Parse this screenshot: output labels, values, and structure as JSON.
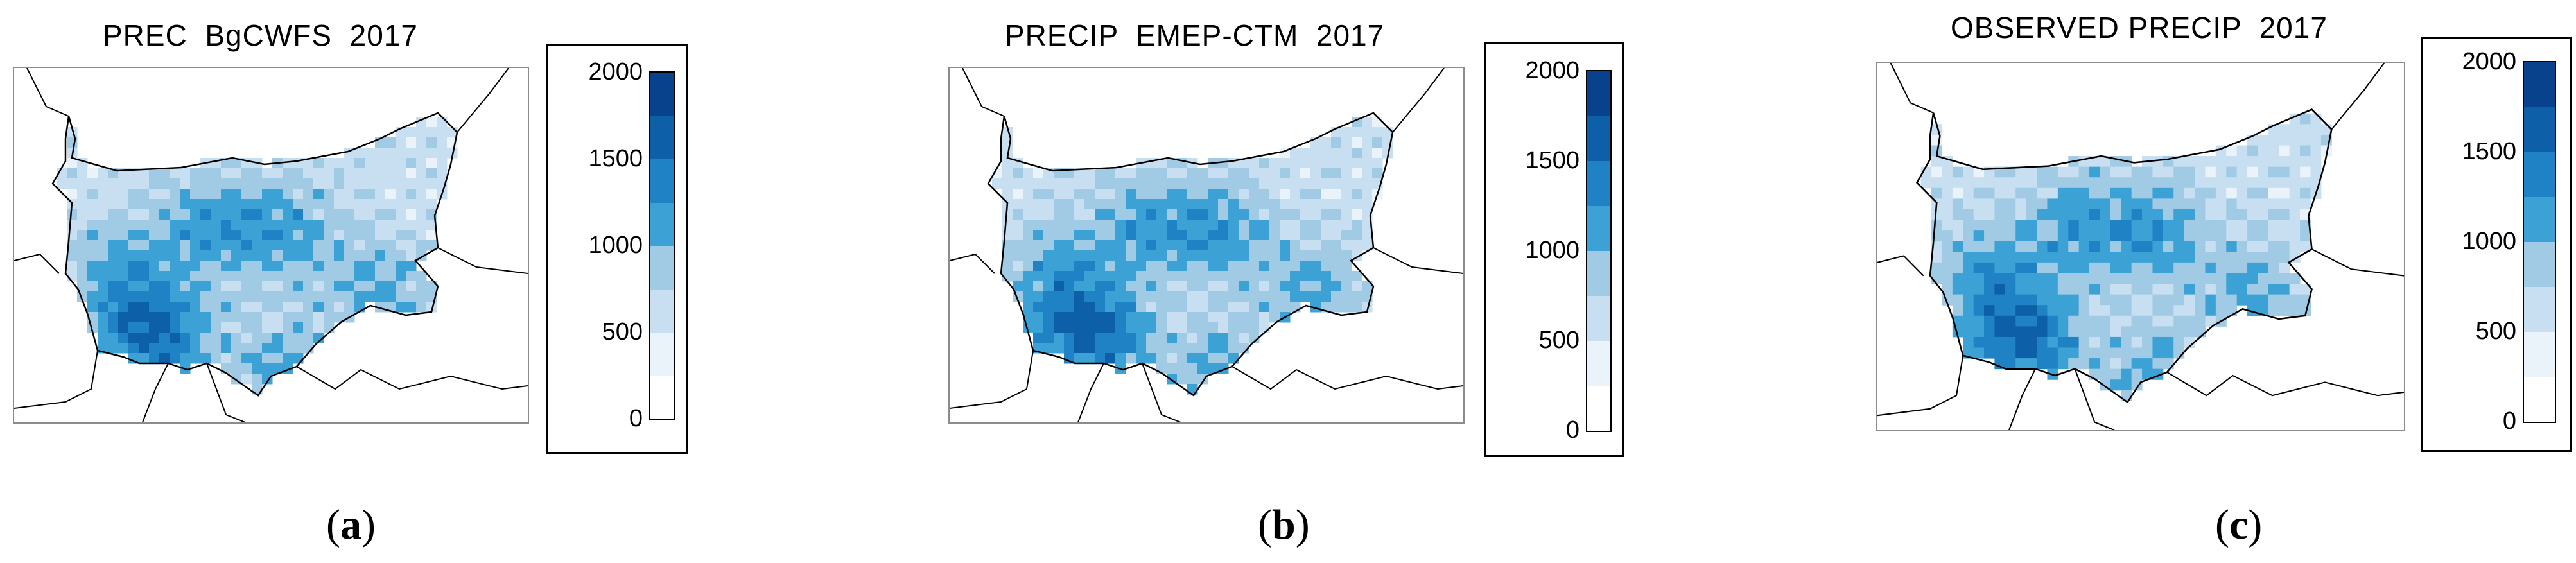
{
  "colors": {
    "scale": [
      "#ffffff",
      "#eaf2fa",
      "#c7dff0",
      "#a1cbe5",
      "#3ca2d6",
      "#1f82c4",
      "#0d5fa8",
      "#08418c"
    ],
    "border": "#000000",
    "frame": "#8c8c8c"
  },
  "panels": [
    {
      "id": "a",
      "title": "PREC  BgCWFS  2017",
      "caption_open": "(",
      "caption_letter": "a",
      "caption_close": ")",
      "legend": {
        "ticks": [
          "2000",
          "1500",
          "1000",
          "500",
          "0"
        ]
      }
    },
    {
      "id": "b",
      "title": "PRECIP  EMEP-CTM  2017",
      "caption_open": "(",
      "caption_letter": "b",
      "caption_close": ")",
      "legend": {
        "ticks": [
          "2000",
          "1500",
          "1000",
          "500",
          "0"
        ]
      }
    },
    {
      "id": "c",
      "title": "OBSERVED PRECIP  2017",
      "caption_open": "(",
      "caption_letter": "c",
      "caption_close": ")",
      "legend": {
        "ticks": [
          "2000",
          "1500",
          "1000",
          "500",
          "0"
        ]
      }
    }
  ],
  "legend_scale": {
    "min": 0,
    "max": 2000,
    "step": 250,
    "unit_shown": false
  }
}
